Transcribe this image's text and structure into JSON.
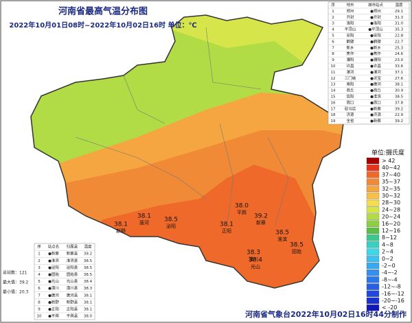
{
  "header": {
    "title": "河南省最高气温分布图",
    "subtitle": "2022年10月01日08时~2022年10月02日16时 单位：℃"
  },
  "city_table": {
    "columns": [
      "序",
      "地市",
      "城市站点",
      "温度"
    ],
    "rows": [
      [
        "1",
        "郑州",
        "●郑州",
        "29.1"
      ],
      [
        "2",
        "开封",
        "●开封",
        "31.3"
      ],
      [
        "3",
        "洛阳",
        "●洛阳",
        "31.0"
      ],
      [
        "4",
        "平顶山",
        "●平顶山",
        "35.3"
      ],
      [
        "5",
        "安阳",
        "●安阳",
        "22.8"
      ],
      [
        "6",
        "鹤壁",
        "●鹤壁",
        "22.7"
      ],
      [
        "7",
        "新乡",
        "●新乡",
        "25.3"
      ],
      [
        "8",
        "焦作",
        "●焦作",
        "24.6"
      ],
      [
        "9",
        "濮阳",
        "●濮阳",
        "23.0"
      ],
      [
        "10",
        "许昌",
        "●许昌",
        "33.6"
      ],
      [
        "11",
        "漯河",
        "●漯河",
        "37.1"
      ],
      [
        "12",
        "三门峡",
        "●灵宝",
        "27.6"
      ],
      [
        "13",
        "南阳",
        "●唐河",
        "38.1"
      ],
      [
        "14",
        "商丘",
        "●商丘",
        "30.9"
      ],
      [
        "15",
        "信阳",
        "●淮滨",
        "38.5"
      ],
      [
        "16",
        "周口",
        "●周口",
        "37.8"
      ],
      [
        "17",
        "驻马店",
        "●新蔡",
        "39.2"
      ],
      [
        "18",
        "济源",
        "●济源",
        "22.9"
      ],
      [
        "19",
        "全省",
        "●新蔡",
        "39.2"
      ]
    ]
  },
  "top_table": {
    "columns": [
      "序",
      "站点名",
      "归属县",
      "温度"
    ],
    "rows": [
      [
        "1",
        "●新蔡",
        "新蔡县",
        "39.2"
      ],
      [
        "2",
        "●淮滨",
        "淮滨县",
        "38.5"
      ],
      [
        "3",
        "●泌阳",
        "泌阳县",
        "38.5"
      ],
      [
        "4",
        "●固始",
        "固始县",
        "38.5"
      ],
      [
        "5",
        "●光山",
        "光山县",
        "38.4"
      ],
      [
        "6",
        "●潢川",
        "潢川县",
        "38.3"
      ],
      [
        "7",
        "●唐河",
        "唐河县",
        "38.1"
      ],
      [
        "8",
        "●新野",
        "新野县",
        "38.1"
      ],
      [
        "9",
        "●正阳",
        "正阳县",
        "38.1"
      ],
      [
        "10",
        "●平舆",
        "平舆县",
        "38.0"
      ]
    ]
  },
  "stats": [
    "总站数：121",
    "最大值：39.2",
    "最小值：20.3"
  ],
  "legend": {
    "title": "单位:摄氏度",
    "items": [
      {
        "label": "> 42",
        "color": "#a50000"
      },
      {
        "label": "40~42",
        "color": "#e8321e"
      },
      {
        "label": "37~40",
        "color": "#ef6a2a"
      },
      {
        "label": "35~37",
        "color": "#f08a36"
      },
      {
        "label": "32~35",
        "color": "#f5a640"
      },
      {
        "label": "30~32",
        "color": "#f7c04a"
      },
      {
        "label": "28~30",
        "color": "#f5dc50"
      },
      {
        "label": "24~28",
        "color": "#d6e64a"
      },
      {
        "label": "20~24",
        "color": "#b2dc46"
      },
      {
        "label": "16~20",
        "color": "#8ccf44"
      },
      {
        "label": "12~16",
        "color": "#5cbe48"
      },
      {
        "label": "8~12",
        "color": "#3cc88c"
      },
      {
        "label": "4~8",
        "color": "#38d0c0"
      },
      {
        "label": "2~4",
        "color": "#3cd8e8"
      },
      {
        "label": "0~2",
        "color": "#3cc0f0"
      },
      {
        "label": "-2~0",
        "color": "#38a8f0"
      },
      {
        "label": "-4~-2",
        "color": "#3490ec"
      },
      {
        "label": "-8~-4",
        "color": "#2c78e8"
      },
      {
        "label": "-12~-8",
        "color": "#2660e0"
      },
      {
        "label": "-16~-12",
        "color": "#2048d8"
      },
      {
        "label": "-20~-16",
        "color": "#1a30d0"
      },
      {
        "label": "< -20",
        "color": "#1018b8"
      }
    ]
  },
  "map_labels": [
    {
      "value": "38.1",
      "place": "新野"
    },
    {
      "value": "38.1",
      "place": "唐河"
    },
    {
      "value": "38.5",
      "place": "泌阳"
    },
    {
      "value": "38.0",
      "place": "平舆"
    },
    {
      "value": "39.2",
      "place": "新蔡"
    },
    {
      "value": "38.1",
      "place": "正阳"
    },
    {
      "value": "38.5",
      "place": "淮滨"
    },
    {
      "value": "38.5",
      "place": "固始"
    },
    {
      "value": "38.3",
      "place": "潢川"
    },
    {
      "value": "38.4",
      "place": "光山"
    }
  ],
  "footer": "河南省气象台2022年10月02日16时44分制作"
}
